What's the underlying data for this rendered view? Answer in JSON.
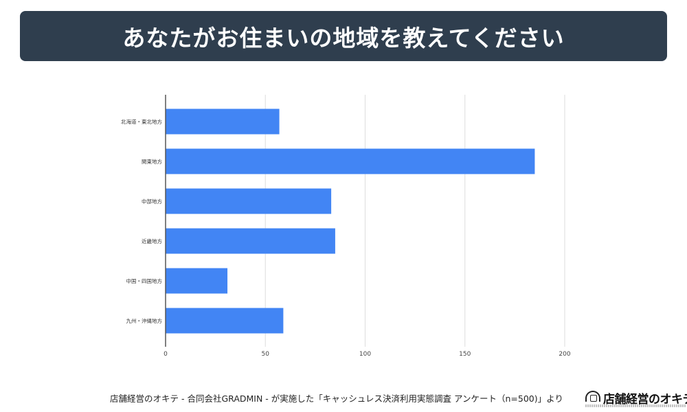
{
  "header": {
    "title": "あなたがお住まいの地域を教えてください"
  },
  "chart_data": {
    "type": "bar",
    "orientation": "horizontal",
    "categories": [
      "北海道・東北地方",
      "関東地方",
      "中部地方",
      "近畿地方",
      "中国・四国地方",
      "九州・沖縄地方"
    ],
    "values": [
      57,
      185,
      83,
      85,
      31,
      59
    ],
    "xlim": [
      0,
      200
    ],
    "xticks": [
      0,
      50,
      100,
      150,
      200
    ],
    "grid": true,
    "bar_color": "#4285f4",
    "grid_color": "#dddddd",
    "title": "",
    "xlabel": "",
    "ylabel": ""
  },
  "footer": {
    "source": "店舗経営のオキテ - 合同会社GRADMIN - が実施した「キャッシュレス決済利用実態調査 アンケート（n=500)」より"
  },
  "logo": {
    "text": "店舗経営のオキテ"
  }
}
